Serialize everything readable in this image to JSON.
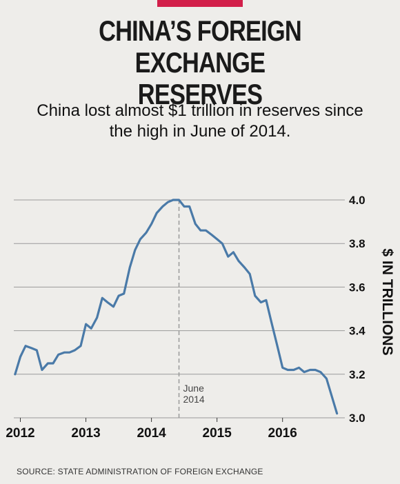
{
  "header": {
    "title_line1": "CHINA’S FOREIGN EXCHANGE",
    "title_line2": "RESERVES",
    "subtitle_line1": "China lost almost $1 trillion in reserves since",
    "subtitle_line2": "the high in June of 2014."
  },
  "source": "SOURCE: STATE ADMINISTRATION OF FOREIGN EXCHANGE",
  "colors": {
    "line": "#4a7aa8",
    "grid": "#999999",
    "accent": "#d21f4a",
    "background": "#eeedea"
  },
  "chart_data": {
    "type": "line",
    "title": "CHINA’S FOREIGN EXCHANGE RESERVES",
    "ylabel": "$ IN TRILLIONS",
    "xlabel": "",
    "ylim": [
      3.0,
      4.0
    ],
    "yticks": [
      "3.0",
      "3.2",
      "3.4",
      "3.6",
      "3.8",
      "4.0"
    ],
    "ytick_values": [
      3.0,
      3.2,
      3.4,
      3.6,
      3.8,
      4.0
    ],
    "xticks": [
      "2012",
      "2013",
      "2014",
      "2015",
      "2016"
    ],
    "xtick_values": [
      2012,
      2013,
      2014,
      2015,
      2016
    ],
    "xlim": [
      2011.9,
      2016.95
    ],
    "grid": "horizontal",
    "annotation": {
      "x": 2014.42,
      "line1": "June",
      "line2": "2014"
    },
    "series": [
      {
        "name": "",
        "x": [
          2011.92,
          2012.0,
          2012.08,
          2012.17,
          2012.25,
          2012.33,
          2012.42,
          2012.5,
          2012.58,
          2012.67,
          2012.75,
          2012.83,
          2012.92,
          2013.0,
          2013.08,
          2013.17,
          2013.25,
          2013.33,
          2013.42,
          2013.5,
          2013.58,
          2013.67,
          2013.75,
          2013.83,
          2013.92,
          2014.0,
          2014.08,
          2014.17,
          2014.25,
          2014.33,
          2014.42,
          2014.5,
          2014.58,
          2014.67,
          2014.75,
          2014.83,
          2014.92,
          2015.0,
          2015.08,
          2015.17,
          2015.25,
          2015.33,
          2015.42,
          2015.5,
          2015.58,
          2015.67,
          2015.75,
          2015.83,
          2015.92,
          2016.0,
          2016.08,
          2016.17,
          2016.25,
          2016.33,
          2016.42,
          2016.5,
          2016.58,
          2016.67,
          2016.75,
          2016.83
        ],
        "values": [
          3.2,
          3.28,
          3.33,
          3.32,
          3.31,
          3.22,
          3.25,
          3.25,
          3.29,
          3.3,
          3.3,
          3.31,
          3.33,
          3.43,
          3.41,
          3.46,
          3.55,
          3.53,
          3.51,
          3.56,
          3.57,
          3.69,
          3.77,
          3.82,
          3.85,
          3.89,
          3.94,
          3.97,
          3.99,
          4.0,
          4.0,
          3.97,
          3.97,
          3.89,
          3.86,
          3.86,
          3.84,
          3.82,
          3.8,
          3.74,
          3.76,
          3.72,
          3.69,
          3.66,
          3.56,
          3.53,
          3.54,
          3.44,
          3.33,
          3.23,
          3.22,
          3.22,
          3.23,
          3.21,
          3.22,
          3.22,
          3.21,
          3.18,
          3.1,
          3.02
        ]
      }
    ]
  }
}
